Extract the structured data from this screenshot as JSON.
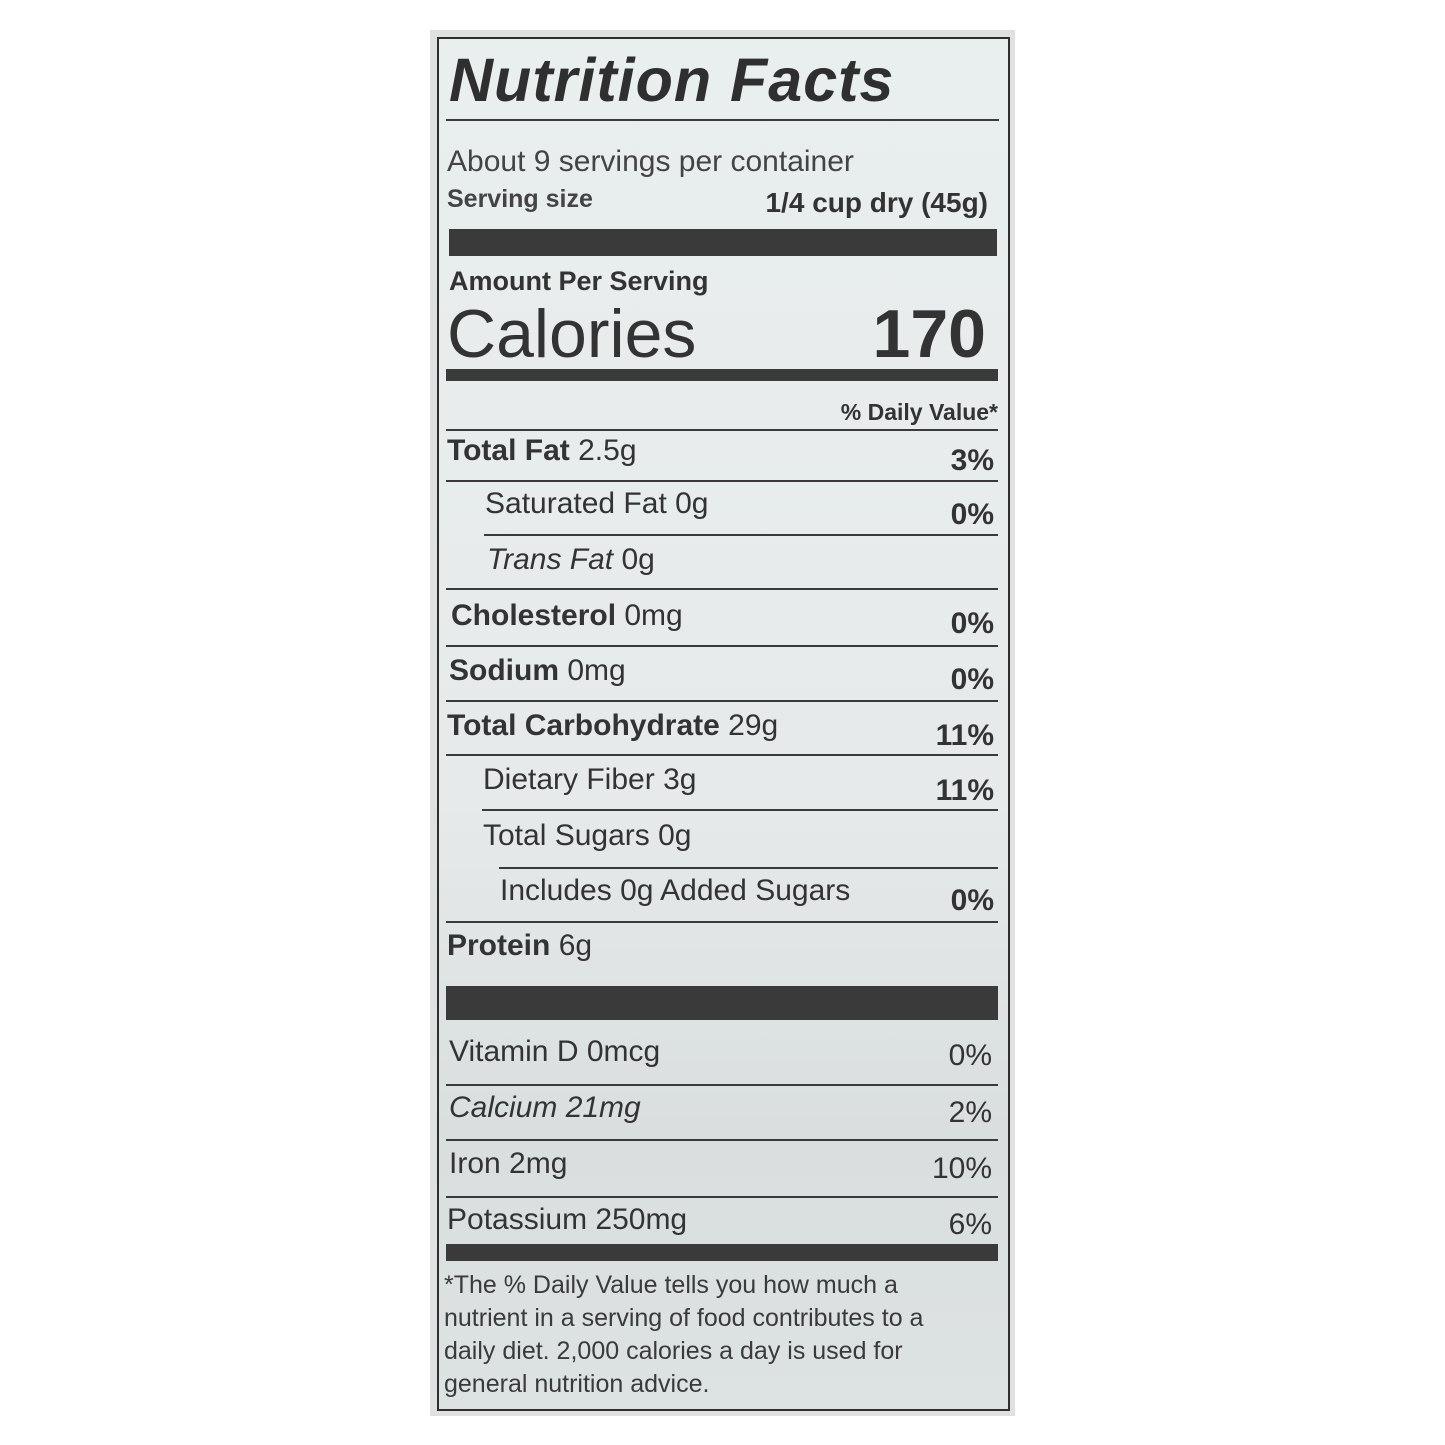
{
  "title": "Nutrition Facts",
  "servings_per_container": "About 9 servings per container",
  "serving_size_label": "Serving size",
  "serving_size_value": "1/4 cup dry (45g)",
  "amount_per_serving": "Amount Per Serving",
  "calories_label": "Calories",
  "calories_value": "170",
  "daily_value_header": "% Daily Value*",
  "nutrients": [
    {
      "name": "Total Fat",
      "amount": "2.5g",
      "dv": "3%"
    },
    {
      "name": "Saturated Fat",
      "amount": "0g",
      "dv": "0%"
    },
    {
      "name": "Trans Fat",
      "amount": "0g"
    },
    {
      "name": "Cholesterol",
      "amount": "0mg",
      "dv": "0%"
    },
    {
      "name": "Sodium",
      "amount": "0mg",
      "dv": "0%"
    },
    {
      "name": "Total Carbohydrate",
      "amount": "29g",
      "dv": "11%"
    },
    {
      "name": "Dietary Fiber",
      "amount": "3g",
      "dv": "11%"
    },
    {
      "name": "Total Sugars",
      "amount": "0g"
    },
    {
      "name": "Includes 0g Added Sugars",
      "dv": "0%"
    },
    {
      "name": "Protein",
      "amount": "6g"
    }
  ],
  "vitamins": [
    {
      "text": "Vitamin D 0mcg",
      "dv": "0%"
    },
    {
      "text": "Calcium 21mg",
      "dv": "2%"
    },
    {
      "text": "Iron 2mg",
      "dv": "10%"
    },
    {
      "text": "Potassium 250mg",
      "dv": "6%"
    }
  ],
  "footnote": [
    "*The % Daily Value tells you how much a",
    "nutrient in a serving of food contributes to a",
    "daily diet. 2,000 calories a day is used for",
    "general nutrition advice."
  ]
}
